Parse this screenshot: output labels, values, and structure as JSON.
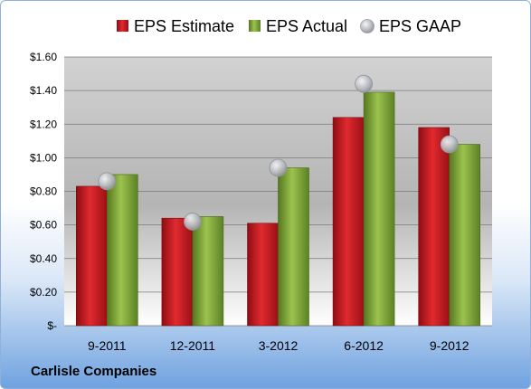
{
  "company": "Carlisle Companies",
  "chart_data": {
    "type": "bar",
    "categories": [
      "9-2011",
      "12-2011",
      "3-2012",
      "6-2012",
      "9-2012"
    ],
    "series": [
      {
        "name": "EPS Estimate",
        "kind": "bar",
        "color": "#c8181f",
        "values": [
          0.83,
          0.64,
          0.61,
          1.24,
          1.18
        ]
      },
      {
        "name": "EPS Actual",
        "kind": "bar",
        "color": "#7ea33a",
        "values": [
          0.9,
          0.65,
          0.94,
          1.39,
          1.08
        ]
      },
      {
        "name": "EPS GAAP",
        "kind": "marker",
        "color": "#b8bcc4",
        "values": [
          0.86,
          0.62,
          0.94,
          1.44,
          1.08
        ]
      }
    ],
    "yticks": [
      {
        "value": 0,
        "label": "$-"
      },
      {
        "value": 0.2,
        "label": "$0.20"
      },
      {
        "value": 0.4,
        "label": "$0.40"
      },
      {
        "value": 0.6,
        "label": "$0.60"
      },
      {
        "value": 0.8,
        "label": "$0.80"
      },
      {
        "value": 1.0,
        "label": "$1.00"
      },
      {
        "value": 1.2,
        "label": "$1.20"
      },
      {
        "value": 1.4,
        "label": "$1.40"
      },
      {
        "value": 1.6,
        "label": "$1.60"
      }
    ],
    "ylim": [
      0,
      1.6
    ],
    "grid": true,
    "legend": "top"
  }
}
